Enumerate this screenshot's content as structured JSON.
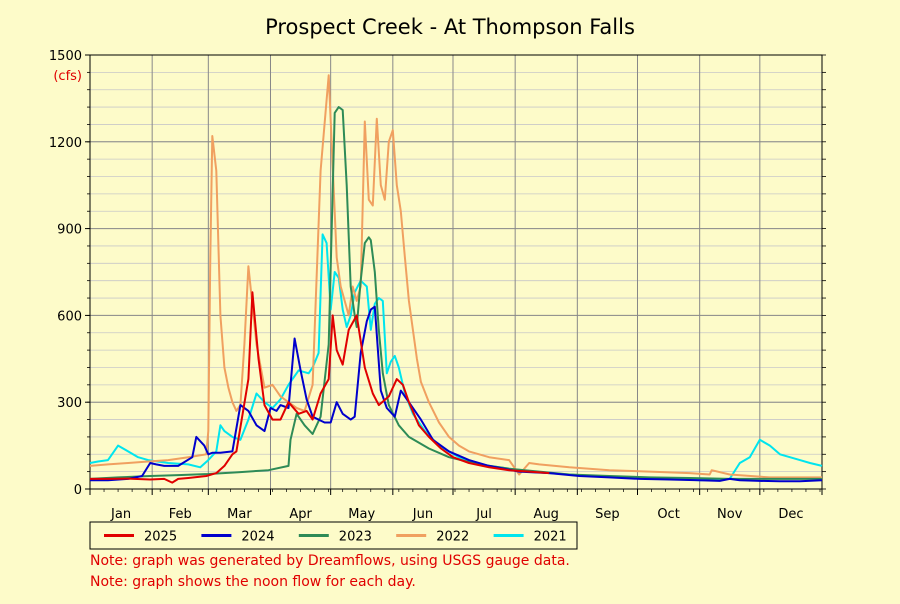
{
  "chart_data": {
    "type": "line",
    "title": "Prospect Creek - At Thompson Falls",
    "ylabel": "(cfs)",
    "xlabel": "",
    "ylim": [
      0,
      1500
    ],
    "yticks": [
      0,
      300,
      600,
      900,
      1200,
      1500
    ],
    "xlim": [
      1,
      366
    ],
    "months": [
      "Jan",
      "Feb",
      "Mar",
      "Apr",
      "May",
      "Jun",
      "Jul",
      "Aug",
      "Sep",
      "Oct",
      "Nov",
      "Dec"
    ],
    "grid": true,
    "legend_position": "bottom",
    "series": [
      {
        "name": "2025",
        "color": "#e00000",
        "x": [
          1,
          10,
          20,
          31,
          38,
          42,
          45,
          50,
          59,
          64,
          68,
          72,
          74,
          80,
          82,
          85,
          88,
          92,
          96,
          100,
          105,
          109,
          112,
          116,
          120,
          122,
          124,
          127,
          130,
          134,
          138,
          142,
          145,
          150,
          154,
          157,
          160,
          165,
          170,
          176,
          182,
          190,
          200,
          210,
          220,
          230
        ],
        "y": [
          35,
          35,
          36,
          33,
          35,
          22,
          35,
          38,
          45,
          55,
          80,
          120,
          130,
          380,
          680,
          450,
          290,
          240,
          240,
          300,
          260,
          270,
          240,
          330,
          380,
          600,
          480,
          430,
          550,
          600,
          420,
          330,
          290,
          320,
          380,
          360,
          300,
          220,
          180,
          140,
          110,
          90,
          75,
          65,
          60,
          55
        ]
      },
      {
        "name": "2024",
        "color": "#0000cc",
        "x": [
          1,
          10,
          20,
          27,
          31,
          34,
          38,
          45,
          52,
          54,
          58,
          60,
          62,
          66,
          72,
          76,
          80,
          84,
          88,
          91,
          94,
          96,
          100,
          103,
          106,
          109,
          112,
          115,
          118,
          121,
          124,
          127,
          129,
          131,
          133,
          136,
          139,
          141,
          143,
          146,
          149,
          153,
          156,
          160,
          166,
          172,
          180,
          190,
          200,
          215,
          230,
          245,
          260,
          275,
          290,
          305,
          315,
          320,
          325,
          335,
          345,
          355,
          366
        ],
        "y": [
          30,
          30,
          35,
          45,
          90,
          85,
          80,
          80,
          110,
          180,
          150,
          120,
          125,
          125,
          130,
          290,
          270,
          220,
          200,
          280,
          270,
          290,
          280,
          520,
          410,
          310,
          250,
          240,
          230,
          230,
          300,
          260,
          250,
          240,
          250,
          470,
          580,
          620,
          630,
          340,
          280,
          250,
          340,
          300,
          240,
          170,
          130,
          100,
          80,
          60,
          55,
          45,
          40,
          35,
          33,
          30,
          28,
          35,
          30,
          28,
          27,
          27,
          30
        ]
      },
      {
        "name": "2023",
        "color": "#2e8b57",
        "x": [
          1,
          15,
          31,
          45,
          60,
          75,
          90,
          100,
          101,
          104,
          108,
          112,
          116,
          120,
          123,
          125,
          127,
          129,
          131,
          133,
          134,
          136,
          138,
          140,
          141,
          143,
          145,
          147,
          150,
          155,
          160,
          170,
          180,
          195,
          210,
          225,
          240,
          260,
          280,
          300,
          320,
          340,
          366
        ],
        "y": [
          35,
          40,
          45,
          48,
          52,
          58,
          65,
          80,
          170,
          260,
          220,
          190,
          250,
          500,
          1300,
          1320,
          1310,
          1050,
          700,
          600,
          560,
          720,
          850,
          870,
          860,
          750,
          550,
          400,
          290,
          220,
          180,
          140,
          110,
          85,
          70,
          60,
          50,
          45,
          40,
          38,
          35,
          35,
          35
        ]
      },
      {
        "name": "2022",
        "color": "#f0a060",
        "x": [
          1,
          10,
          20,
          30,
          40,
          50,
          59,
          60,
          61,
          62,
          64,
          66,
          68,
          70,
          72,
          74,
          76,
          78,
          80,
          84,
          88,
          92,
          96,
          100,
          104,
          108,
          112,
          116,
          120,
          124,
          126,
          128,
          130,
          132,
          134,
          136,
          138,
          140,
          142,
          144,
          146,
          148,
          150,
          152,
          154,
          156,
          158,
          160,
          162,
          164,
          166,
          170,
          175,
          180,
          185,
          190,
          195,
          200,
          210,
          215,
          220,
          225,
          240,
          250,
          260,
          280,
          300,
          310,
          311,
          320,
          340,
          366
        ],
        "y": [
          80,
          85,
          90,
          95,
          100,
          110,
          120,
          200,
          800,
          1220,
          1100,
          600,
          420,
          350,
          300,
          270,
          290,
          500,
          770,
          500,
          350,
          360,
          320,
          300,
          280,
          270,
          360,
          1100,
          1430,
          800,
          700,
          650,
          600,
          700,
          650,
          700,
          1270,
          1000,
          980,
          1280,
          1050,
          1000,
          1200,
          1240,
          1050,
          960,
          800,
          650,
          550,
          450,
          370,
          300,
          230,
          180,
          150,
          130,
          120,
          110,
          100,
          50,
          90,
          85,
          75,
          70,
          65,
          60,
          55,
          50,
          65,
          50,
          40,
          40
        ]
      },
      {
        "name": "2021",
        "color": "#00e5ee",
        "x": [
          1,
          5,
          10,
          15,
          20,
          25,
          30,
          40,
          50,
          56,
          60,
          64,
          66,
          68,
          72,
          76,
          80,
          84,
          88,
          92,
          96,
          100,
          105,
          110,
          112,
          115,
          117,
          119,
          121,
          123,
          125,
          127,
          129,
          131,
          133,
          136,
          139,
          141,
          143,
          145,
          147,
          149,
          151,
          153,
          155,
          158,
          162,
          168,
          175,
          185,
          195,
          210,
          230,
          250,
          270,
          290,
          305,
          320,
          325,
          330,
          335,
          340,
          345,
          350,
          355,
          360,
          366
        ],
        "y": [
          90,
          95,
          100,
          150,
          130,
          110,
          100,
          90,
          85,
          75,
          100,
          130,
          220,
          200,
          180,
          170,
          240,
          330,
          300,
          280,
          310,
          360,
          410,
          400,
          420,
          470,
          880,
          850,
          620,
          750,
          730,
          620,
          560,
          600,
          680,
          720,
          700,
          550,
          640,
          660,
          650,
          400,
          440,
          460,
          420,
          330,
          260,
          200,
          150,
          110,
          85,
          70,
          55,
          45,
          40,
          35,
          30,
          35,
          90,
          110,
          170,
          150,
          120,
          110,
          100,
          90,
          80
        ]
      }
    ],
    "notes": [
      "Note: graph was generated by Dreamflows, using USGS gauge data.",
      "Note: graph shows the noon flow for each day."
    ],
    "colors": {
      "background": "#fdfbc9",
      "ylabel": "#e00000",
      "notes": "#e00000"
    }
  }
}
